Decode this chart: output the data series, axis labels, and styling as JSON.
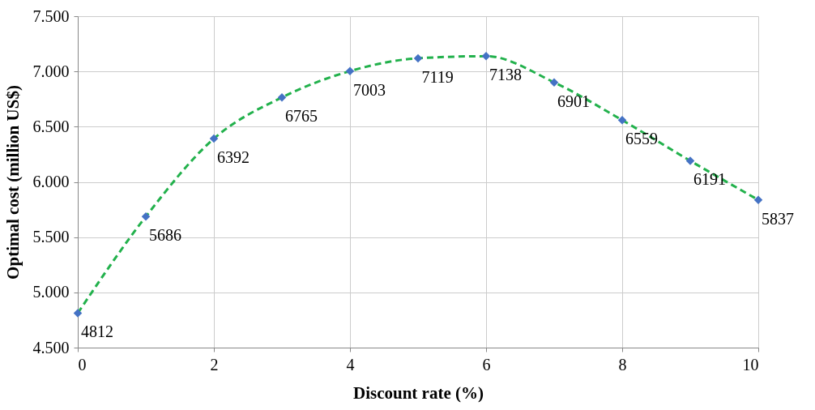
{
  "chart_data": {
    "type": "line",
    "xlabel": "Discount rate (%)",
    "ylabel": "Optimal cost (million US$)",
    "x": [
      0,
      1,
      2,
      3,
      4,
      5,
      6,
      7,
      8,
      9,
      10
    ],
    "series": [
      {
        "color": "#22b14c",
        "line_style": "dashed",
        "marker": "none",
        "values": [
          4812,
          5686,
          6392,
          6765,
          7003,
          7119,
          7138,
          6901,
          6559,
          6191,
          5837
        ],
        "value_labels": [
          "4812",
          "5686",
          "6392",
          "6765",
          "7003",
          "7119",
          "7138",
          "6901",
          "6559",
          "6191",
          "5837"
        ]
      },
      {
        "type": "scatter",
        "color": "#4472c4",
        "marker": "diamond",
        "values": [
          4812,
          5686,
          6392,
          6765,
          7003,
          7119,
          7138,
          6901,
          6559,
          6191,
          5837
        ]
      }
    ],
    "xlim": [
      0,
      10
    ],
    "xticks": [
      0,
      2,
      4,
      6,
      8,
      10
    ],
    "ylim": [
      4500,
      7500
    ],
    "yticks": [
      {
        "value": 4500,
        "label": "4.500"
      },
      {
        "value": 5000,
        "label": "5.000"
      },
      {
        "value": 5500,
        "label": "5.500"
      },
      {
        "value": 6000,
        "label": "6.000"
      },
      {
        "value": 6500,
        "label": "6.500"
      },
      {
        "value": 7000,
        "label": "7.000"
      },
      {
        "value": 7500,
        "label": "7.500"
      }
    ],
    "grid": true
  }
}
